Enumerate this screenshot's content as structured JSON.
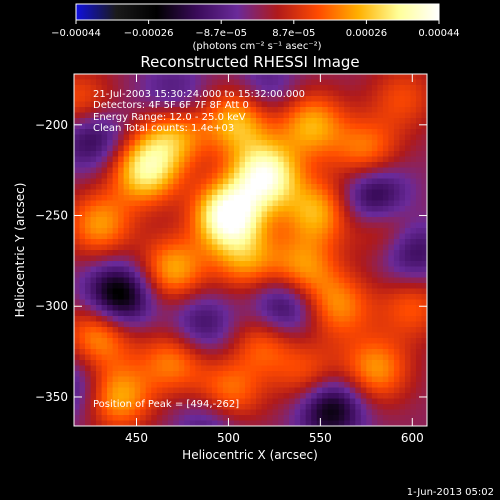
{
  "chart_data": {
    "type": "heatmap",
    "title": "Reconstructed RHESSI Image",
    "xlabel": "Heliocentric X (arcsec)",
    "ylabel": "Heliocentric Y (arcsec)",
    "xlim": [
      416,
      608
    ],
    "ylim": [
      -366,
      -172
    ],
    "x_ticks": [
      450,
      500,
      550,
      600
    ],
    "y_ticks": [
      -350,
      -300,
      -250,
      -200
    ],
    "colorbar": {
      "label": "(photons cm⁻² s⁻¹ asec⁻²)",
      "range": [
        -0.00044,
        0.00044
      ],
      "tick_labels": [
        "−0.00044",
        "−0.00026",
        "−8.7e−05",
        "8.7e−05",
        "0.00026",
        "0.00044"
      ],
      "colors": [
        "#1010e0",
        "#1a1a1a",
        "#000000",
        "#3a0b5a",
        "#6a2a9a",
        "#b01a1a",
        "#ff4a00",
        "#ffb000",
        "#ffff99",
        "#ffffff"
      ]
    },
    "annotations": {
      "time": "21-Jul-2003 15:30:24.000 to 15:32:00.000",
      "detectors": "Detectors: 4F 5F 6F 7F 8F  Att 0",
      "energy": "Energy Range: 12.0 - 25.0 keV",
      "method": "Clean     Total counts: 1.4e+03",
      "peak": "Position of Peak = [494,-262]"
    },
    "blobs": [
      {
        "x": 500,
        "y": -250,
        "v": 1.0
      },
      {
        "x": 520,
        "y": -228,
        "v": 0.9
      },
      {
        "x": 455,
        "y": -225,
        "v": 0.75
      },
      {
        "x": 470,
        "y": -205,
        "v": 0.55
      },
      {
        "x": 505,
        "y": -198,
        "v": 0.6
      },
      {
        "x": 545,
        "y": -200,
        "v": 0.55
      },
      {
        "x": 575,
        "y": -215,
        "v": 0.45
      },
      {
        "x": 548,
        "y": -248,
        "v": 0.55
      },
      {
        "x": 585,
        "y": -255,
        "v": 0.4
      },
      {
        "x": 430,
        "y": -255,
        "v": 0.5
      },
      {
        "x": 470,
        "y": -280,
        "v": 0.55
      },
      {
        "x": 510,
        "y": -275,
        "v": 0.45
      },
      {
        "x": 540,
        "y": -280,
        "v": 0.5
      },
      {
        "x": 560,
        "y": -300,
        "v": 0.45
      },
      {
        "x": 430,
        "y": -315,
        "v": 0.55
      },
      {
        "x": 470,
        "y": -330,
        "v": 0.45
      },
      {
        "x": 520,
        "y": -320,
        "v": 0.4
      },
      {
        "x": 580,
        "y": -335,
        "v": 0.5
      },
      {
        "x": 440,
        "y": -350,
        "v": 0.55
      },
      {
        "x": 500,
        "y": -348,
        "v": 0.45
      },
      {
        "x": 545,
        "y": -340,
        "v": 0.4
      },
      {
        "x": 600,
        "y": -300,
        "v": 0.35
      },
      {
        "x": 420,
        "y": -190,
        "v": 0.45
      },
      {
        "x": 595,
        "y": -185,
        "v": 0.3
      },
      {
        "x": 440,
        "y": -295,
        "v": -0.7
      },
      {
        "x": 425,
        "y": -205,
        "v": -0.5
      },
      {
        "x": 580,
        "y": -240,
        "v": -0.6
      },
      {
        "x": 530,
        "y": -300,
        "v": -0.5
      },
      {
        "x": 555,
        "y": -355,
        "v": -0.65
      },
      {
        "x": 485,
        "y": -310,
        "v": -0.35
      },
      {
        "x": 600,
        "y": -270,
        "v": -0.4
      },
      {
        "x": 470,
        "y": -185,
        "v": -0.3
      },
      {
        "x": 520,
        "y": -180,
        "v": -0.25
      },
      {
        "x": 415,
        "y": -345,
        "v": -0.3
      },
      {
        "x": 490,
        "y": -365,
        "v": -0.3
      }
    ]
  },
  "footer": {
    "date": "1-Jun-2013 05:02"
  }
}
